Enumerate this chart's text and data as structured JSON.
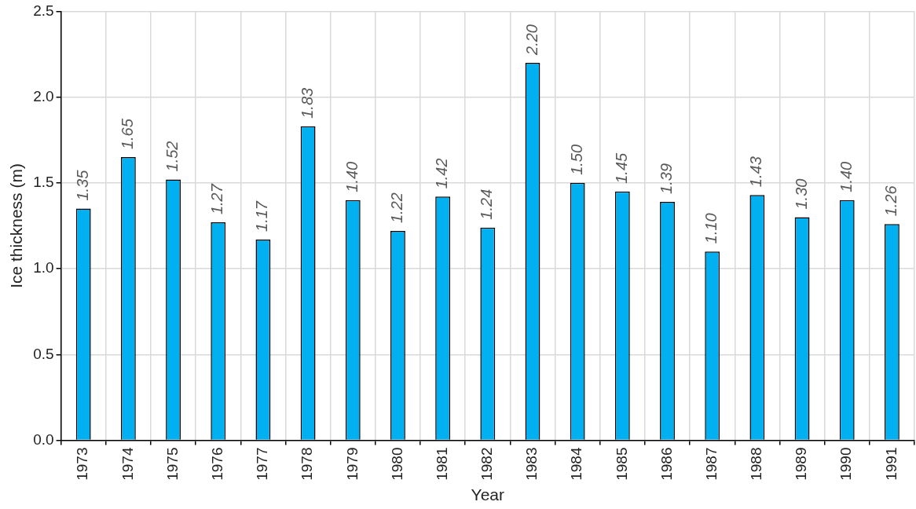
{
  "chart_data": {
    "type": "bar",
    "xlabel": "Year",
    "ylabel": "Ice thickness (m)",
    "categories": [
      "1973",
      "1974",
      "1975",
      "1976",
      "1977",
      "1978",
      "1979",
      "1980",
      "1981",
      "1982",
      "1983",
      "1984",
      "1985",
      "1986",
      "1987",
      "1988",
      "1989",
      "1990",
      "1991"
    ],
    "values": [
      1.35,
      1.65,
      1.52,
      1.27,
      1.17,
      1.83,
      1.4,
      1.22,
      1.42,
      1.24,
      2.2,
      1.5,
      1.45,
      1.39,
      1.1,
      1.43,
      1.3,
      1.4,
      1.26
    ],
    "value_labels": [
      "1.35",
      "1.65",
      "1.52",
      "1.27",
      "1.17",
      "1.83",
      "1.40",
      "1.22",
      "1.42",
      "1.24",
      "2.20",
      "1.50",
      "1.45",
      "1.39",
      "1.10",
      "1.43",
      "1.30",
      "1.40",
      "1.26"
    ],
    "color": "#00b0f0",
    "ylim": [
      0,
      2.5
    ],
    "yticks": [
      {
        "value": 0,
        "label": "0.0"
      },
      {
        "value": 0.5,
        "label": "0.5"
      },
      {
        "value": 1,
        "label": "1.0"
      },
      {
        "value": 1.5,
        "label": "1.5"
      },
      {
        "value": 2,
        "label": "2.0"
      },
      {
        "value": 2.5,
        "label": "2.5"
      }
    ],
    "grid": true,
    "legend": false
  }
}
